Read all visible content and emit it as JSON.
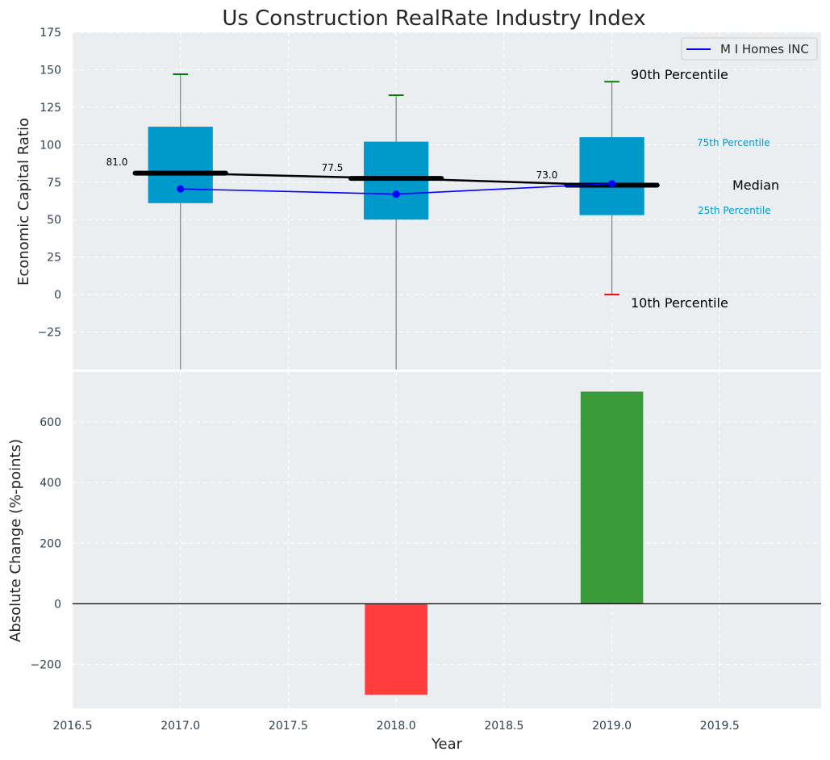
{
  "chart_data": [
    {
      "type": "box",
      "title": "Us Construction RealRate Industry Index",
      "ylabel": "Economic Capital Ratio",
      "xlim": [
        2016.5,
        2019.97
      ],
      "ylim": [
        -50,
        175
      ],
      "yticks": [
        -25,
        0,
        25,
        50,
        75,
        100,
        125,
        150,
        175
      ],
      "grid": true,
      "legend": {
        "position": "top-right",
        "entries": [
          "M I Homes INC"
        ]
      },
      "categories": [
        2017,
        2018,
        2019
      ],
      "p10": [
        -50,
        -50,
        0
      ],
      "p25": [
        61,
        50,
        53
      ],
      "median": [
        81.0,
        77.5,
        73.0
      ],
      "median_labels": [
        "81.0",
        "77.5",
        "73.0"
      ],
      "p75": [
        112,
        102,
        105
      ],
      "p90": [
        147,
        133,
        142
      ],
      "series": [
        {
          "name": "M I Homes INC",
          "x": [
            2017,
            2018,
            2019
          ],
          "values": [
            70.5,
            67,
            74
          ]
        }
      ],
      "annotations": {
        "p90": "90th Percentile",
        "p75": "75th Percentile",
        "median": "Median",
        "p25": "25th Percentile",
        "p10": "10th Percentile"
      },
      "colors": {
        "box": "#0099cc",
        "median": "#000000",
        "series": "#0000ff",
        "p90": "#008000",
        "p10": "#ff0000",
        "whisker": "#808080",
        "plot_bg": "#eaeef0"
      }
    },
    {
      "type": "bar",
      "xlabel": "Year",
      "ylabel": "Absolute Change (%-points)",
      "xlim": [
        2016.5,
        2019.97
      ],
      "xticks": [
        2016.5,
        2017.0,
        2017.5,
        2018.0,
        2018.5,
        2019.0,
        2019.5
      ],
      "xtick_labels": [
        "2016.5",
        "2017.0",
        "2017.5",
        "2018.0",
        "2018.5",
        "2019.0",
        "2019.5"
      ],
      "ylim": [
        -345,
        765
      ],
      "yticks": [
        -200,
        0,
        200,
        400,
        600
      ],
      "grid": true,
      "x": [
        2018,
        2019
      ],
      "values": [
        -300,
        700
      ],
      "colors": {
        "negative": "#ff3d3d",
        "positive": "#3a9a3a"
      }
    }
  ]
}
